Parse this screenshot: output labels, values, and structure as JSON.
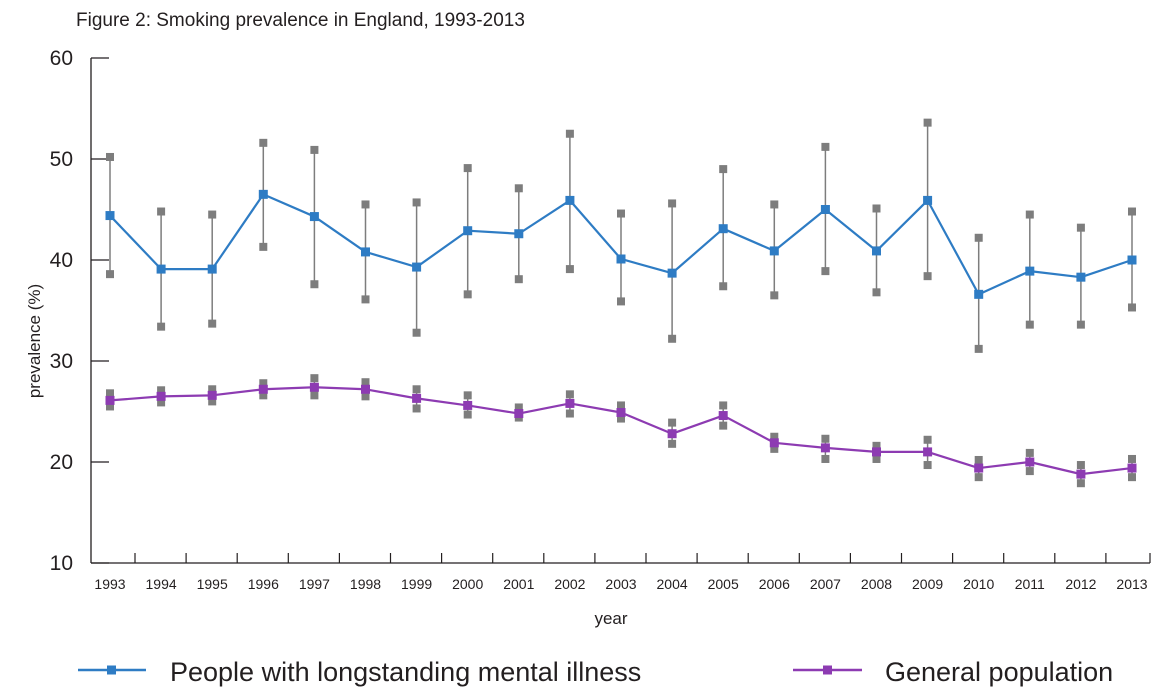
{
  "chart_data": {
    "type": "line",
    "title": "Figure 2: Smoking prevalence in England, 1993-2013",
    "xlabel": "year",
    "ylabel": "prevalence (%)",
    "ylim": [
      10,
      60
    ],
    "yticks": [
      10,
      20,
      30,
      40,
      50,
      60
    ],
    "grid": false,
    "legend_position": "bottom",
    "x": [
      "1993",
      "1994",
      "1995",
      "1996",
      "1997",
      "1998",
      "1999",
      "2000",
      "2001",
      "2002",
      "2003",
      "2004",
      "2005",
      "2006",
      "2007",
      "2008",
      "2009",
      "2010",
      "2011",
      "2012",
      "2013"
    ],
    "series": [
      {
        "name": "People with longstanding mental illness",
        "color": "#2e7cc4",
        "values": [
          44.4,
          39.1,
          39.1,
          46.5,
          44.3,
          40.8,
          39.3,
          42.9,
          42.6,
          45.9,
          40.1,
          38.7,
          43.1,
          40.9,
          45.0,
          40.9,
          45.9,
          36.6,
          38.9,
          38.3,
          40.0
        ],
        "error_low": [
          38.6,
          33.4,
          33.7,
          41.3,
          37.6,
          36.1,
          32.8,
          36.6,
          38.1,
          39.1,
          35.9,
          32.2,
          37.4,
          36.5,
          38.9,
          36.8,
          38.4,
          31.2,
          33.6,
          33.6,
          35.3
        ],
        "error_high": [
          50.2,
          44.8,
          44.5,
          51.6,
          50.9,
          45.5,
          45.7,
          49.1,
          47.1,
          52.5,
          44.6,
          45.6,
          49.0,
          45.5,
          51.2,
          45.1,
          53.6,
          42.2,
          44.5,
          43.2,
          44.8
        ]
      },
      {
        "name": "General population",
        "color": "#8d3bb2",
        "values": [
          26.1,
          26.5,
          26.6,
          27.2,
          27.4,
          27.2,
          26.3,
          25.6,
          24.8,
          25.8,
          24.9,
          22.8,
          24.6,
          21.9,
          21.4,
          21.0,
          21.0,
          19.4,
          20.0,
          18.8,
          19.4
        ],
        "error_low": [
          25.5,
          25.9,
          26.0,
          26.6,
          26.6,
          26.5,
          25.3,
          24.7,
          24.4,
          24.8,
          24.3,
          21.8,
          23.6,
          21.3,
          20.3,
          20.3,
          19.7,
          18.5,
          19.1,
          17.9,
          18.5
        ],
        "error_high": [
          26.8,
          27.1,
          27.2,
          27.8,
          28.3,
          27.9,
          27.2,
          26.6,
          25.4,
          26.7,
          25.6,
          23.9,
          25.6,
          22.5,
          22.3,
          21.6,
          22.2,
          20.2,
          20.9,
          19.7,
          20.3
        ]
      }
    ]
  }
}
